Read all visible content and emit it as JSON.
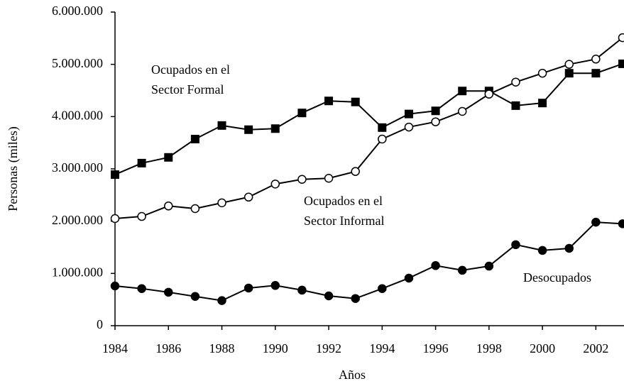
{
  "chart_data": {
    "type": "line",
    "x_label": "Años",
    "y_label": "Personas (miles)",
    "x": [
      1984,
      1985,
      1986,
      1987,
      1988,
      1989,
      1990,
      1991,
      1992,
      1993,
      1994,
      1995,
      1996,
      1997,
      1998,
      1999,
      2000,
      2001,
      2002,
      2003
    ],
    "xlim": [
      1984,
      2003
    ],
    "xticks": [
      1984,
      1986,
      1988,
      1990,
      1992,
      1994,
      1996,
      1998,
      2000,
      2002
    ],
    "ylim": [
      0,
      6000000
    ],
    "yticks": [
      0,
      {
        "value": 1000000,
        "label": "1.000.000"
      },
      {
        "value": 2000000,
        "label": "2.000.000"
      },
      {
        "value": 3000000,
        "label": "3.000.000"
      },
      {
        "value": 4000000,
        "label": "4.000.000"
      },
      {
        "value": 5000000,
        "label": "5.000.000"
      },
      {
        "value": 6000000,
        "label": "6.000.000"
      }
    ],
    "series": [
      {
        "label_lines": [
          "Ocupados en el",
          "Sector Formal"
        ],
        "color": "#000000",
        "marker": "filled-square",
        "values": [
          2890000,
          3110000,
          3220000,
          3570000,
          3830000,
          3750000,
          3770000,
          4070000,
          4300000,
          4280000,
          3790000,
          4050000,
          4110000,
          4490000,
          4490000,
          4210000,
          4260000,
          4830000,
          4830000,
          5010000
        ]
      },
      {
        "label_lines": [
          "Ocupados en el",
          "Sector Informal"
        ],
        "color": "#000000",
        "marker": "open-circle",
        "values": [
          2050000,
          2090000,
          2290000,
          2240000,
          2350000,
          2460000,
          2710000,
          2800000,
          2820000,
          2950000,
          3570000,
          3800000,
          3900000,
          4100000,
          4430000,
          4660000,
          4830000,
          5000000,
          5100000,
          5510000
        ]
      },
      {
        "label_lines": [
          "Desocupados"
        ],
        "color": "#000000",
        "marker": "filled-circle",
        "values": [
          760000,
          710000,
          640000,
          560000,
          480000,
          720000,
          770000,
          680000,
          570000,
          520000,
          710000,
          910000,
          1150000,
          1060000,
          1140000,
          1550000,
          1440000,
          1480000,
          1980000,
          1950000
        ]
      }
    ]
  }
}
